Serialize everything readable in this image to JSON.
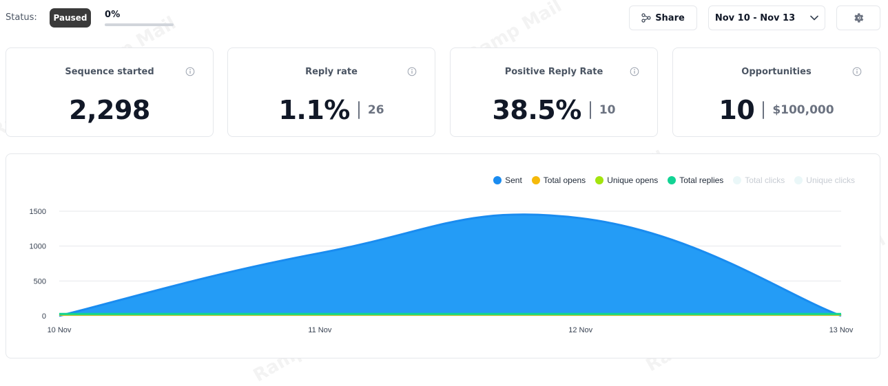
{
  "header": {
    "status_label": "Status:",
    "status_badge": "Paused",
    "progress_text": "0%",
    "progress_value": 0,
    "share_label": "Share",
    "date_range": "Nov 10 - Nov 13"
  },
  "icons": {
    "share": "share-icon",
    "chevron": "chevron-down-icon",
    "gear": "gear-icon",
    "info": "info-icon"
  },
  "stats": [
    {
      "title": "Sequence started",
      "value": "2,298",
      "secondary": ""
    },
    {
      "title": "Reply rate",
      "value": "1.1%",
      "secondary": "26"
    },
    {
      "title": "Positive Reply Rate",
      "value": "38.5%",
      "secondary": "10"
    },
    {
      "title": "Opportunities",
      "value": "10",
      "secondary": "$100,000"
    }
  ],
  "watermark_text": "Ramp Mail",
  "chart_data": {
    "type": "area",
    "x": [
      "10 Nov",
      "11 Nov",
      "12 Nov",
      "13 Nov"
    ],
    "ylim": [
      0,
      1500
    ],
    "yticks": [
      0,
      500,
      1000,
      1500
    ],
    "grid": true,
    "legend_position": "top-right",
    "series": [
      {
        "name": "Sent",
        "color": "#1a8cf0",
        "values": [
          0,
          900,
          1400,
          0
        ],
        "active": true
      },
      {
        "name": "Total opens",
        "color": "#f5b90a",
        "values": [
          0,
          0,
          0,
          0
        ],
        "active": true
      },
      {
        "name": "Unique opens",
        "color": "#a3e40e",
        "values": [
          0,
          0,
          0,
          0
        ],
        "active": true
      },
      {
        "name": "Total replies",
        "color": "#12d394",
        "values": [
          0,
          0,
          0,
          0
        ],
        "active": true
      },
      {
        "name": "Total clicks",
        "color": "#eaf7f8",
        "values": [
          0,
          0,
          0,
          0
        ],
        "active": false
      },
      {
        "name": "Unique clicks",
        "color": "#eaf7f8",
        "values": [
          0,
          0,
          0,
          0
        ],
        "active": false
      }
    ]
  }
}
